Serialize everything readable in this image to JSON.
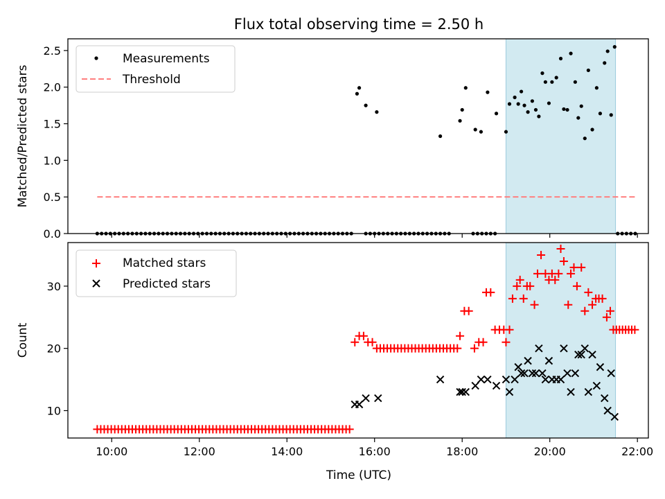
{
  "figure": {
    "title": "Flux total observing time = 2.50 h",
    "shade_color": "#add8e6"
  },
  "chart_data": [
    {
      "type": "scatter",
      "ylabel": "Matched/Predicted stars",
      "xlim": [
        9.0,
        22.25
      ],
      "ylim": [
        0,
        2.66
      ],
      "x_ticks": [
        10,
        12,
        14,
        16,
        18,
        20,
        22
      ],
      "y_ticks": [
        0.0,
        0.5,
        1.0,
        1.5,
        2.0,
        2.5
      ],
      "y_tick_labels": [
        "0.0",
        "0.5",
        "1.0",
        "1.5",
        "2.0",
        "2.5"
      ],
      "shaded_span": [
        19.0,
        21.5
      ],
      "legend": {
        "placement": "top-left",
        "entries": [
          "Measurements",
          "Threshold"
        ]
      },
      "series": [
        {
          "name": "Measurements",
          "marker": "dot",
          "color": "#000000",
          "points": [
            [
              15.6,
              1.91
            ],
            [
              15.65,
              1.99
            ],
            [
              15.8,
              1.75
            ],
            [
              16.05,
              1.66
            ],
            [
              17.5,
              1.33
            ],
            [
              17.95,
              1.54
            ],
            [
              18.0,
              1.69
            ],
            [
              18.08,
              1.99
            ],
            [
              18.3,
              1.42
            ],
            [
              18.43,
              1.39
            ],
            [
              18.58,
              1.93
            ],
            [
              18.78,
              1.64
            ],
            [
              19.0,
              1.39
            ],
            [
              19.08,
              1.77
            ],
            [
              19.2,
              1.86
            ],
            [
              19.28,
              1.77
            ],
            [
              19.35,
              1.94
            ],
            [
              19.42,
              1.75
            ],
            [
              19.5,
              1.66
            ],
            [
              19.6,
              1.81
            ],
            [
              19.68,
              1.69
            ],
            [
              19.75,
              1.6
            ],
            [
              19.83,
              2.19
            ],
            [
              19.9,
              2.07
            ],
            [
              19.98,
              1.78
            ],
            [
              20.05,
              2.07
            ],
            [
              20.15,
              2.13
            ],
            [
              20.25,
              2.39
            ],
            [
              20.32,
              1.7
            ],
            [
              20.4,
              1.69
            ],
            [
              20.48,
              2.46
            ],
            [
              20.58,
              2.07
            ],
            [
              20.65,
              1.58
            ],
            [
              20.72,
              1.74
            ],
            [
              20.8,
              1.3
            ],
            [
              20.88,
              2.23
            ],
            [
              20.97,
              1.42
            ],
            [
              21.07,
              1.99
            ],
            [
              21.15,
              1.64
            ],
            [
              21.25,
              2.33
            ],
            [
              21.32,
              2.49
            ],
            [
              21.4,
              1.62
            ],
            [
              21.48,
              2.55
            ]
          ],
          "zero_ranges": [
            [
              9.67,
              15.5,
              0.1
            ],
            [
              15.8,
              17.75,
              0.1
            ],
            [
              18.25,
              18.75,
              0.1
            ],
            [
              21.55,
              21.95,
              0.1
            ]
          ]
        },
        {
          "name": "Threshold",
          "line": "dashed",
          "color": "#ff7f7f",
          "points": [
            [
              9.67,
              0.5
            ],
            [
              21.95,
              0.5
            ]
          ]
        }
      ]
    },
    {
      "type": "scatter",
      "xlabel": "Time (UTC)",
      "ylabel": "Count",
      "xlim": [
        9.0,
        22.25
      ],
      "ylim": [
        5.6,
        37.0
      ],
      "x_ticks": [
        10,
        12,
        14,
        16,
        18,
        20,
        22
      ],
      "x_tick_labels": [
        "10:00",
        "12:00",
        "14:00",
        "16:00",
        "18:00",
        "20:00",
        "22:00"
      ],
      "y_ticks": [
        10,
        20,
        30
      ],
      "y_tick_labels": [
        "10",
        "20",
        "30"
      ],
      "shaded_span": [
        19.0,
        21.5
      ],
      "legend": {
        "placement": "top-left",
        "entries": [
          "Matched stars",
          "Predicted stars"
        ]
      },
      "series": [
        {
          "name": "Matched stars",
          "marker": "plus",
          "color": "#ff0000",
          "points": [
            [
              15.55,
              21
            ],
            [
              15.65,
              22
            ],
            [
              15.75,
              22
            ],
            [
              15.85,
              21
            ],
            [
              15.95,
              21
            ],
            [
              17.95,
              22
            ],
            [
              18.05,
              26
            ],
            [
              18.15,
              26
            ],
            [
              18.28,
              20
            ],
            [
              18.38,
              21
            ],
            [
              18.48,
              21
            ],
            [
              18.55,
              29
            ],
            [
              18.65,
              29
            ],
            [
              18.75,
              23
            ],
            [
              18.85,
              23
            ],
            [
              18.95,
              23
            ],
            [
              19.0,
              21
            ],
            [
              19.08,
              23
            ],
            [
              19.15,
              28
            ],
            [
              19.25,
              30
            ],
            [
              19.32,
              31
            ],
            [
              19.4,
              28
            ],
            [
              19.48,
              30
            ],
            [
              19.55,
              30
            ],
            [
              19.65,
              27
            ],
            [
              19.72,
              32
            ],
            [
              19.8,
              35
            ],
            [
              19.9,
              32
            ],
            [
              19.98,
              31
            ],
            [
              20.05,
              32
            ],
            [
              20.12,
              31
            ],
            [
              20.2,
              32
            ],
            [
              20.25,
              36
            ],
            [
              20.32,
              34
            ],
            [
              20.42,
              27
            ],
            [
              20.48,
              32
            ],
            [
              20.55,
              33
            ],
            [
              20.62,
              30
            ],
            [
              20.72,
              33
            ],
            [
              20.8,
              26
            ],
            [
              20.88,
              29
            ],
            [
              20.97,
              27
            ],
            [
              21.05,
              28
            ],
            [
              21.12,
              28
            ],
            [
              21.2,
              28
            ],
            [
              21.3,
              25
            ],
            [
              21.38,
              26
            ]
          ],
          "repeat_ranges": [
            [
              9.67,
              15.5,
              0.08,
              7
            ],
            [
              16.05,
              17.95,
              0.08,
              20
            ],
            [
              21.45,
              21.95,
              0.07,
              23
            ]
          ]
        },
        {
          "name": "Predicted stars",
          "marker": "x",
          "color": "#000000",
          "points": [
            [
              15.55,
              11
            ],
            [
              15.65,
              11
            ],
            [
              15.8,
              12
            ],
            [
              16.08,
              12
            ],
            [
              17.5,
              15
            ],
            [
              17.95,
              13
            ],
            [
              18.0,
              13
            ],
            [
              18.08,
              13
            ],
            [
              18.3,
              14
            ],
            [
              18.43,
              15
            ],
            [
              18.58,
              15
            ],
            [
              18.78,
              14
            ],
            [
              19.0,
              15
            ],
            [
              19.08,
              13
            ],
            [
              19.2,
              15
            ],
            [
              19.28,
              17
            ],
            [
              19.35,
              16
            ],
            [
              19.42,
              16
            ],
            [
              19.5,
              18
            ],
            [
              19.6,
              16
            ],
            [
              19.68,
              16
            ],
            [
              19.75,
              20
            ],
            [
              19.83,
              16
            ],
            [
              19.9,
              15
            ],
            [
              19.98,
              18
            ],
            [
              20.05,
              15
            ],
            [
              20.15,
              15
            ],
            [
              20.25,
              15
            ],
            [
              20.32,
              20
            ],
            [
              20.4,
              16
            ],
            [
              20.48,
              13
            ],
            [
              20.58,
              16
            ],
            [
              20.65,
              19
            ],
            [
              20.72,
              19
            ],
            [
              20.8,
              20
            ],
            [
              20.88,
              13
            ],
            [
              20.97,
              19
            ],
            [
              21.07,
              14
            ],
            [
              21.15,
              17
            ],
            [
              21.25,
              12
            ],
            [
              21.32,
              10
            ],
            [
              21.4,
              16
            ],
            [
              21.48,
              9
            ]
          ]
        }
      ]
    }
  ]
}
